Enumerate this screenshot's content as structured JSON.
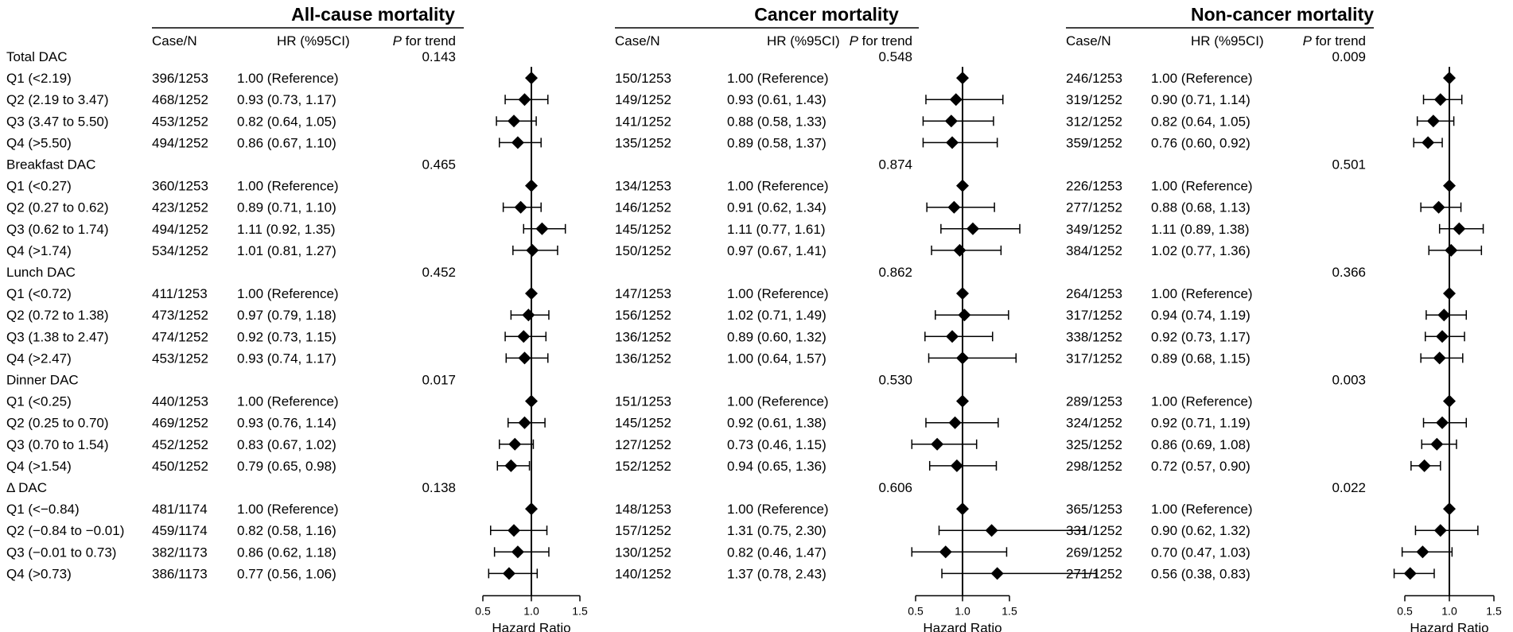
{
  "chart_data": {
    "type": "forest",
    "x_axis": {
      "label": "Hazard Ratio",
      "ticks": [
        0.5,
        1.0,
        1.5
      ],
      "tick_labels": [
        "0.5",
        "1.0",
        "1.5"
      ],
      "reference_line": 1.0
    },
    "column_headers": {
      "case_n": "Case/N",
      "hr": "HR (%95CI)",
      "p_trend_italic": "P",
      "p_trend_rest": " for trend"
    },
    "row_labels": [
      "Total DAC",
      "Q1 (<2.19)",
      "Q2 (2.19 to 3.47)",
      "Q3 (3.47 to 5.50)",
      "Q4 (>5.50)",
      "Breakfast DAC",
      "Q1 (<0.27)",
      "Q2 (0.27 to 0.62)",
      "Q3 (0.62 to 1.74)",
      "Q4 (>1.74)",
      "Lunch DAC",
      "Q1 (<0.72)",
      "Q2 (0.72 to 1.38)",
      "Q3 (1.38 to 2.47)",
      "Q4 (>2.47)",
      "Dinner DAC",
      "Q1 (<0.25)",
      "Q2 (0.25 to 0.70)",
      "Q3 (0.70 to 1.54)",
      "Q4 (>1.54)",
      "Δ DAC",
      "Q1 (<−0.84)",
      "Q2 (−0.84 to −0.01)",
      "Q3 (−0.01 to 0.73)",
      "Q4 (>0.73)"
    ],
    "panels": [
      {
        "title": "All-cause mortality",
        "rows": [
          {
            "p": "0.143"
          },
          {
            "case_n": "396/1253",
            "hr_text": "1.00 (Reference)",
            "hr": 1.0,
            "lo": 1.0,
            "hi": 1.0
          },
          {
            "case_n": "468/1252",
            "hr_text": "0.93 (0.73, 1.17)",
            "hr": 0.93,
            "lo": 0.73,
            "hi": 1.17
          },
          {
            "case_n": "453/1252",
            "hr_text": "0.82 (0.64, 1.05)",
            "hr": 0.82,
            "lo": 0.64,
            "hi": 1.05
          },
          {
            "case_n": "494/1252",
            "hr_text": "0.86 (0.67, 1.10)",
            "hr": 0.86,
            "lo": 0.67,
            "hi": 1.1
          },
          {
            "p": "0.465"
          },
          {
            "case_n": "360/1253",
            "hr_text": "1.00 (Reference)",
            "hr": 1.0,
            "lo": 1.0,
            "hi": 1.0
          },
          {
            "case_n": "423/1252",
            "hr_text": "0.89 (0.71, 1.10)",
            "hr": 0.89,
            "lo": 0.71,
            "hi": 1.1
          },
          {
            "case_n": "494/1252",
            "hr_text": "1.11 (0.92, 1.35)",
            "hr": 1.11,
            "lo": 0.92,
            "hi": 1.35
          },
          {
            "case_n": "534/1252",
            "hr_text": "1.01 (0.81, 1.27)",
            "hr": 1.01,
            "lo": 0.81,
            "hi": 1.27
          },
          {
            "p": "0.452"
          },
          {
            "case_n": "411/1253",
            "hr_text": "1.00 (Reference)",
            "hr": 1.0,
            "lo": 1.0,
            "hi": 1.0
          },
          {
            "case_n": "473/1252",
            "hr_text": "0.97 (0.79, 1.18)",
            "hr": 0.97,
            "lo": 0.79,
            "hi": 1.18
          },
          {
            "case_n": "474/1252",
            "hr_text": "0.92 (0.73, 1.15)",
            "hr": 0.92,
            "lo": 0.73,
            "hi": 1.15
          },
          {
            "case_n": "453/1252",
            "hr_text": "0.93 (0.74, 1.17)",
            "hr": 0.93,
            "lo": 0.74,
            "hi": 1.17
          },
          {
            "p": "0.017"
          },
          {
            "case_n": "440/1253",
            "hr_text": "1.00 (Reference)",
            "hr": 1.0,
            "lo": 1.0,
            "hi": 1.0
          },
          {
            "case_n": "469/1252",
            "hr_text": "0.93 (0.76, 1.14)",
            "hr": 0.93,
            "lo": 0.76,
            "hi": 1.14
          },
          {
            "case_n": "452/1252",
            "hr_text": "0.83 (0.67, 1.02)",
            "hr": 0.83,
            "lo": 0.67,
            "hi": 1.02
          },
          {
            "case_n": "450/1252",
            "hr_text": "0.79 (0.65, 0.98)",
            "hr": 0.79,
            "lo": 0.65,
            "hi": 0.98
          },
          {
            "p": "0.138"
          },
          {
            "case_n": "481/1174",
            "hr_text": "1.00 (Reference)",
            "hr": 1.0,
            "lo": 1.0,
            "hi": 1.0
          },
          {
            "case_n": "459/1174",
            "hr_text": "0.82 (0.58, 1.16)",
            "hr": 0.82,
            "lo": 0.58,
            "hi": 1.16
          },
          {
            "case_n": "382/1173",
            "hr_text": "0.86 (0.62, 1.18)",
            "hr": 0.86,
            "lo": 0.62,
            "hi": 1.18
          },
          {
            "case_n": "386/1173",
            "hr_text": "0.77 (0.56, 1.06)",
            "hr": 0.77,
            "lo": 0.56,
            "hi": 1.06
          }
        ]
      },
      {
        "title": "Cancer mortality",
        "rows": [
          {
            "p": "0.548"
          },
          {
            "case_n": "150/1253",
            "hr_text": "1.00 (Reference)",
            "hr": 1.0,
            "lo": 1.0,
            "hi": 1.0
          },
          {
            "case_n": "149/1252",
            "hr_text": "0.93 (0.61, 1.43)",
            "hr": 0.93,
            "lo": 0.61,
            "hi": 1.43
          },
          {
            "case_n": "141/1252",
            "hr_text": "0.88 (0.58, 1.33)",
            "hr": 0.88,
            "lo": 0.58,
            "hi": 1.33
          },
          {
            "case_n": "135/1252",
            "hr_text": "0.89 (0.58, 1.37)",
            "hr": 0.89,
            "lo": 0.58,
            "hi": 1.37
          },
          {
            "p": "0.874"
          },
          {
            "case_n": "134/1253",
            "hr_text": "1.00 (Reference)",
            "hr": 1.0,
            "lo": 1.0,
            "hi": 1.0
          },
          {
            "case_n": "146/1252",
            "hr_text": "0.91 (0.62, 1.34)",
            "hr": 0.91,
            "lo": 0.62,
            "hi": 1.34
          },
          {
            "case_n": "145/1252",
            "hr_text": "1.11 (0.77, 1.61)",
            "hr": 1.11,
            "lo": 0.77,
            "hi": 1.61
          },
          {
            "case_n": "150/1252",
            "hr_text": "0.97 (0.67, 1.41)",
            "hr": 0.97,
            "lo": 0.67,
            "hi": 1.41
          },
          {
            "p": "0.862"
          },
          {
            "case_n": "147/1253",
            "hr_text": "1.00 (Reference)",
            "hr": 1.0,
            "lo": 1.0,
            "hi": 1.0
          },
          {
            "case_n": "156/1252",
            "hr_text": "1.02 (0.71, 1.49)",
            "hr": 1.02,
            "lo": 0.71,
            "hi": 1.49
          },
          {
            "case_n": "136/1252",
            "hr_text": "0.89 (0.60, 1.32)",
            "hr": 0.89,
            "lo": 0.6,
            "hi": 1.32
          },
          {
            "case_n": "136/1252",
            "hr_text": "1.00 (0.64, 1.57)",
            "hr": 1.0,
            "lo": 0.64,
            "hi": 1.57
          },
          {
            "p": "0.530"
          },
          {
            "case_n": "151/1253",
            "hr_text": "1.00 (Reference)",
            "hr": 1.0,
            "lo": 1.0,
            "hi": 1.0
          },
          {
            "case_n": "145/1252",
            "hr_text": "0.92 (0.61, 1.38)",
            "hr": 0.92,
            "lo": 0.61,
            "hi": 1.38
          },
          {
            "case_n": "127/1252",
            "hr_text": "0.73 (0.46, 1.15)",
            "hr": 0.73,
            "lo": 0.46,
            "hi": 1.15
          },
          {
            "case_n": "152/1252",
            "hr_text": "0.94 (0.65, 1.36)",
            "hr": 0.94,
            "lo": 0.65,
            "hi": 1.36
          },
          {
            "p": "0.606"
          },
          {
            "case_n": "148/1253",
            "hr_text": "1.00 (Reference)",
            "hr": 1.0,
            "lo": 1.0,
            "hi": 1.0
          },
          {
            "case_n": "157/1252",
            "hr_text": "1.31 (0.75, 2.30)",
            "hr": 1.31,
            "lo": 0.75,
            "hi": 2.3
          },
          {
            "case_n": "130/1252",
            "hr_text": "0.82 (0.46, 1.47)",
            "hr": 0.82,
            "lo": 0.46,
            "hi": 1.47
          },
          {
            "case_n": "140/1252",
            "hr_text": "1.37 (0.78, 2.43)",
            "hr": 1.37,
            "lo": 0.78,
            "hi": 2.43
          }
        ]
      },
      {
        "title": "Non-cancer mortality",
        "rows": [
          {
            "p": "0.009"
          },
          {
            "case_n": "246/1253",
            "hr_text": "1.00 (Reference)",
            "hr": 1.0,
            "lo": 1.0,
            "hi": 1.0
          },
          {
            "case_n": "319/1252",
            "hr_text": "0.90 (0.71, 1.14)",
            "hr": 0.9,
            "lo": 0.71,
            "hi": 1.14
          },
          {
            "case_n": "312/1252",
            "hr_text": "0.82 (0.64, 1.05)",
            "hr": 0.82,
            "lo": 0.64,
            "hi": 1.05
          },
          {
            "case_n": "359/1252",
            "hr_text": "0.76 (0.60, 0.92)",
            "hr": 0.76,
            "lo": 0.6,
            "hi": 0.92
          },
          {
            "p": "0.501"
          },
          {
            "case_n": "226/1253",
            "hr_text": "1.00 (Reference)",
            "hr": 1.0,
            "lo": 1.0,
            "hi": 1.0
          },
          {
            "case_n": "277/1252",
            "hr_text": "0.88 (0.68, 1.13)",
            "hr": 0.88,
            "lo": 0.68,
            "hi": 1.13
          },
          {
            "case_n": "349/1252",
            "hr_text": "1.11 (0.89, 1.38)",
            "hr": 1.11,
            "lo": 0.89,
            "hi": 1.38
          },
          {
            "case_n": "384/1252",
            "hr_text": "1.02 (0.77, 1.36)",
            "hr": 1.02,
            "lo": 0.77,
            "hi": 1.36
          },
          {
            "p": "0.366"
          },
          {
            "case_n": "264/1253",
            "hr_text": "1.00 (Reference)",
            "hr": 1.0,
            "lo": 1.0,
            "hi": 1.0
          },
          {
            "case_n": "317/1252",
            "hr_text": "0.94 (0.74, 1.19)",
            "hr": 0.94,
            "lo": 0.74,
            "hi": 1.19
          },
          {
            "case_n": "338/1252",
            "hr_text": "0.92 (0.73, 1.17)",
            "hr": 0.92,
            "lo": 0.73,
            "hi": 1.17
          },
          {
            "case_n": "317/1252",
            "hr_text": "0.89 (0.68, 1.15)",
            "hr": 0.89,
            "lo": 0.68,
            "hi": 1.15
          },
          {
            "p": "0.003"
          },
          {
            "case_n": "289/1253",
            "hr_text": "1.00 (Reference)",
            "hr": 1.0,
            "lo": 1.0,
            "hi": 1.0
          },
          {
            "case_n": "324/1252",
            "hr_text": "0.92 (0.71, 1.19)",
            "hr": 0.92,
            "lo": 0.71,
            "hi": 1.19
          },
          {
            "case_n": "325/1252",
            "hr_text": "0.86 (0.69, 1.08)",
            "hr": 0.86,
            "lo": 0.69,
            "hi": 1.08
          },
          {
            "case_n": "298/1252",
            "hr_text": "0.72 (0.57, 0.90)",
            "hr": 0.72,
            "lo": 0.57,
            "hi": 0.9
          },
          {
            "p": "0.022"
          },
          {
            "case_n": "365/1253",
            "hr_text": "1.00 (Reference)",
            "hr": 1.0,
            "lo": 1.0,
            "hi": 1.0
          },
          {
            "case_n": "331/1252",
            "hr_text": "0.90 (0.62, 1.32)",
            "hr": 0.9,
            "lo": 0.62,
            "hi": 1.32
          },
          {
            "case_n": "269/1252",
            "hr_text": "0.70 (0.47, 1.03)",
            "hr": 0.7,
            "lo": 0.47,
            "hi": 1.03
          },
          {
            "case_n": "271/1252",
            "hr_text": "0.56 (0.38, 0.83)",
            "hr": 0.56,
            "lo": 0.38,
            "hi": 0.83
          }
        ]
      }
    ]
  }
}
